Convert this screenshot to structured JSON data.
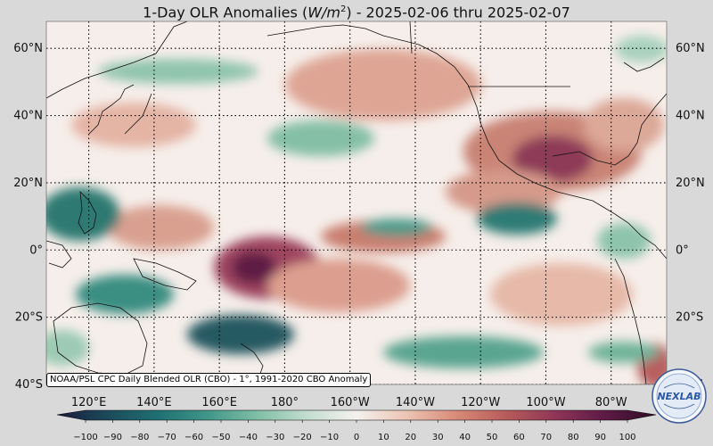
{
  "title": {
    "prefix": "1-Day OLR Anomalies (",
    "unit_base": "W/m",
    "unit_exp": "2",
    "suffix": ") - 2025-02-06 thru 2025-02-07"
  },
  "map": {
    "lat_labels": [
      "60°N",
      "40°N",
      "20°N",
      "0°",
      "20°S",
      "40°S"
    ],
    "lat_values": [
      60,
      40,
      20,
      0,
      -20,
      -40
    ],
    "lon_labels": [
      "120°E",
      "140°E",
      "160°E",
      "180°",
      "160°W",
      "140°W",
      "120°W",
      "100°W",
      "80°W"
    ],
    "lon_values": [
      120,
      140,
      160,
      180,
      200,
      220,
      240,
      260,
      280
    ],
    "extent": {
      "lon_min": 107,
      "lon_max": 297,
      "lat_min": -40,
      "lat_max": 68
    },
    "gridlines": true
  },
  "colorbar": {
    "ticks": [
      "−100",
      "−90",
      "−80",
      "−70",
      "−60",
      "−50",
      "−40",
      "−30",
      "−20",
      "−10",
      "0",
      "10",
      "20",
      "30",
      "40",
      "50",
      "60",
      "70",
      "80",
      "90",
      "100"
    ],
    "min": -100,
    "max": 100,
    "stops": [
      "#1a1a3a",
      "#1b4a5a",
      "#1f6f72",
      "#3f9688",
      "#7fbea6",
      "#c3ddd0",
      "#f4f1ee",
      "#ecc4b4",
      "#d88b78",
      "#b85b5b",
      "#8e3557",
      "#5c1a45",
      "#2e0d25"
    ]
  },
  "credit": "NOAA/PSL CPC Daily Blended OLR (CBO) - 1°, 1991-2020 CBO Anomaly",
  "logo": {
    "text": "NEXLAB",
    "name": "nexlab-logo"
  },
  "colors": {
    "neutral": "#f6eeea",
    "negative_strong": "#1e6f6a",
    "negative_mid": "#6fb39a",
    "negative_light": "#c9e2d3",
    "positive_light": "#edc5b6",
    "positive_mid": "#cf7c6e",
    "positive_strong": "#8a3554"
  }
}
